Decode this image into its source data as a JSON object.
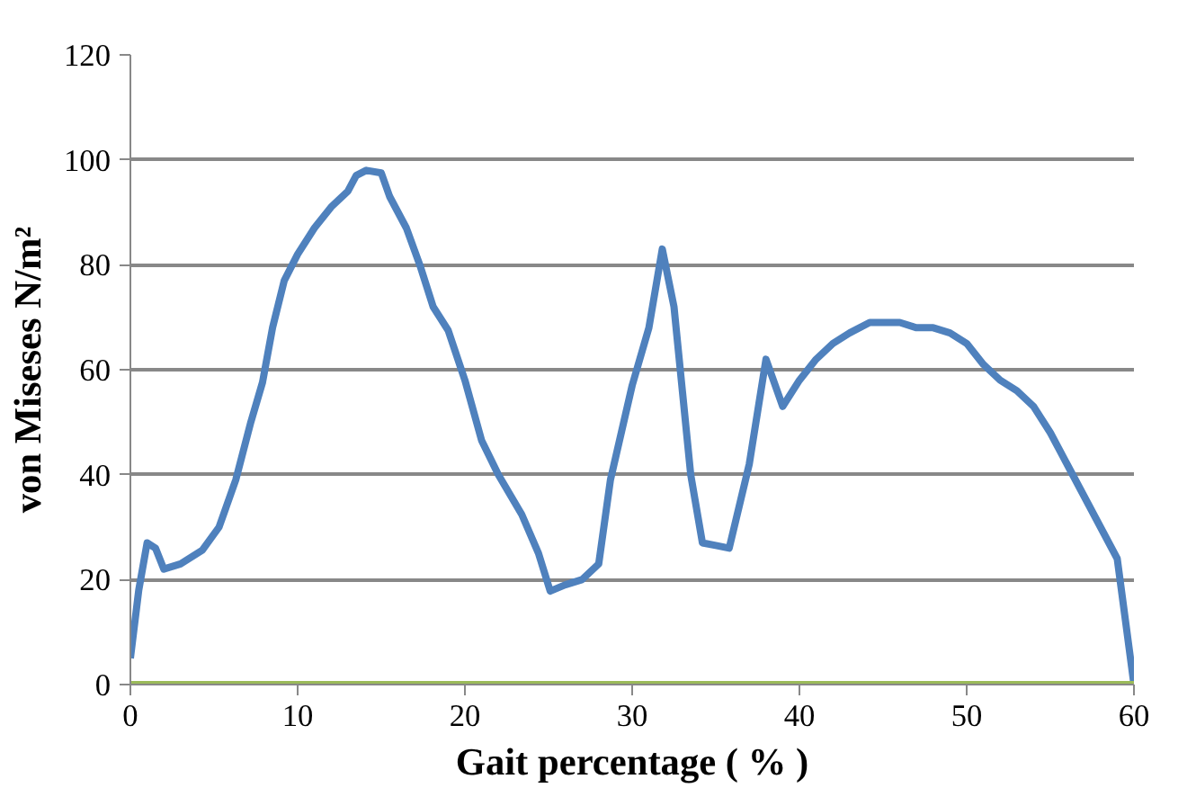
{
  "chart_data": {
    "type": "line",
    "xlabel": "Gait percentage ( % )",
    "ylabel": "von Miseses N/m²",
    "xlim": [
      0,
      60
    ],
    "ylim": [
      0,
      120
    ],
    "xticks": [
      0,
      10,
      20,
      30,
      40,
      50,
      60
    ],
    "yticks": [
      0,
      20,
      40,
      60,
      80,
      100,
      120
    ],
    "grid": "y",
    "line_style": "solid",
    "marker": "none",
    "series": [
      {
        "color": "#4f81bd",
        "x": [
          0,
          0.5,
          1,
          1.5,
          2,
          3,
          4.3,
          5.3,
          6.3,
          7.2,
          7.9,
          8.5,
          9.2,
          10,
          11,
          12,
          13,
          13.5,
          14.1,
          15,
          15.5,
          16.5,
          17.3,
          18.1,
          19,
          20,
          21,
          22,
          23.4,
          24.4,
          25.1,
          26,
          27,
          28,
          28.7,
          30,
          31,
          31.8,
          32.5,
          33.5,
          34.2,
          35,
          35.8,
          37,
          38,
          39,
          40,
          41,
          42,
          43,
          44.2,
          45,
          46,
          47,
          48,
          49,
          50,
          51,
          52,
          53,
          54,
          55,
          56,
          57,
          58,
          59,
          59.5,
          60
        ],
        "values": [
          5,
          18,
          27,
          26,
          22,
          23,
          25.6,
          30,
          39,
          50,
          57.6,
          68,
          77,
          82,
          87,
          91,
          94,
          97,
          98,
          97.5,
          93,
          87,
          80,
          72,
          67.5,
          58,
          46.5,
          40,
          32.4,
          25,
          17.8,
          19,
          20,
          23,
          39,
          57,
          68,
          83,
          72,
          40,
          27,
          26.5,
          26,
          42,
          62,
          53,
          58,
          62,
          65,
          67,
          69,
          69,
          69,
          68,
          68,
          67,
          65,
          61,
          58,
          56,
          53,
          48,
          42,
          36,
          30,
          24,
          12,
          0
        ]
      },
      {
        "color": "#9bbb59",
        "x": [
          0,
          60
        ],
        "values": [
          0,
          0
        ]
      }
    ]
  }
}
